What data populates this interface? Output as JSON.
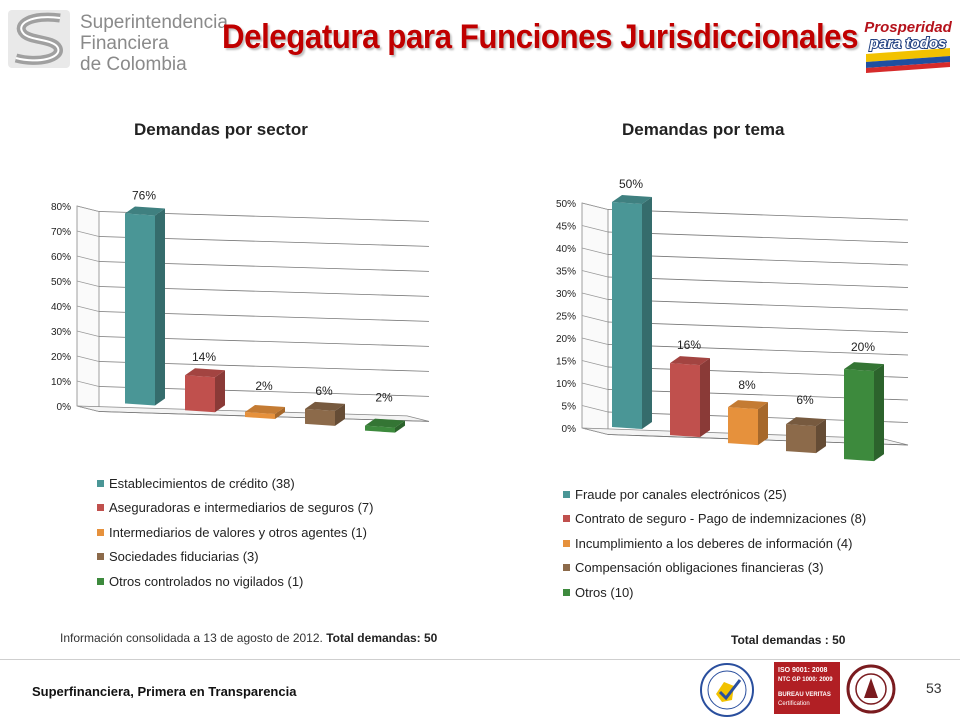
{
  "header": {
    "logo_lines": [
      "Superintendencia",
      "Financiera",
      "de Colombia"
    ],
    "title": "Delegatura para Funciones Jurisdiccionales",
    "brand_logo_lines": [
      "Prosperidad",
      "para todos"
    ]
  },
  "chart_data": [
    {
      "type": "bar",
      "title": "Demandas por sector",
      "categories": [
        "Establecimientos de crédito (38)",
        "Aseguradoras e intermediarios de seguros (7)",
        "Intermediarios de valores y otros agentes (1)",
        "Sociedades fiduciarias (3)",
        "Otros controlados no vigilados (1)"
      ],
      "values": [
        76,
        14,
        2,
        6,
        2
      ],
      "data_labels": [
        "76%",
        "14%",
        "2%",
        "6%",
        "2%"
      ],
      "colors": [
        "#4a9696",
        "#c0504d",
        "#e6913c",
        "#8c6a4a",
        "#3d8a3d"
      ],
      "ylim": [
        0,
        80
      ],
      "yticks": [
        "0%",
        "10%",
        "20%",
        "30%",
        "40%",
        "50%",
        "60%",
        "70%",
        "80%"
      ],
      "legend_position": "bottom",
      "grid": true
    },
    {
      "type": "bar",
      "title": "Demandas por tema",
      "categories": [
        "Fraude por canales electrónicos (25)",
        "Contrato de seguro - Pago de indemnizaciones (8)",
        "Incumplimiento a los deberes de información (4)",
        "Compensación obligaciones financieras (3)",
        "Otros (10)"
      ],
      "values": [
        50,
        16,
        8,
        6,
        20
      ],
      "data_labels": [
        "50%",
        "16%",
        "8%",
        "6%",
        "20%"
      ],
      "colors": [
        "#4a9696",
        "#c0504d",
        "#e6913c",
        "#8c6a4a",
        "#3d8a3d"
      ],
      "ylim": [
        0,
        50
      ],
      "yticks": [
        "0%",
        "5%",
        "10%",
        "15%",
        "20%",
        "25%",
        "30%",
        "35%",
        "40%",
        "45%",
        "50%"
      ],
      "legend_position": "bottom",
      "grid": true
    }
  ],
  "notes": {
    "info_text": "Información consolidada a 13 de agosto de 2012. ",
    "info_bold": "Total demandas: 50",
    "total_right": "Total demandas : 50"
  },
  "footer": {
    "tagline": "Superfinanciera, Primera en Transparencia",
    "page_number": "53",
    "cert_icons": [
      "quality-seal-icon",
      "iso-certificate-icon",
      "bureau-veritas-icon"
    ],
    "iso_lines": [
      "ISO 9001: 2008",
      "NTC GP 1000: 2009",
      "BUREAU VERITAS",
      "Certification"
    ]
  }
}
